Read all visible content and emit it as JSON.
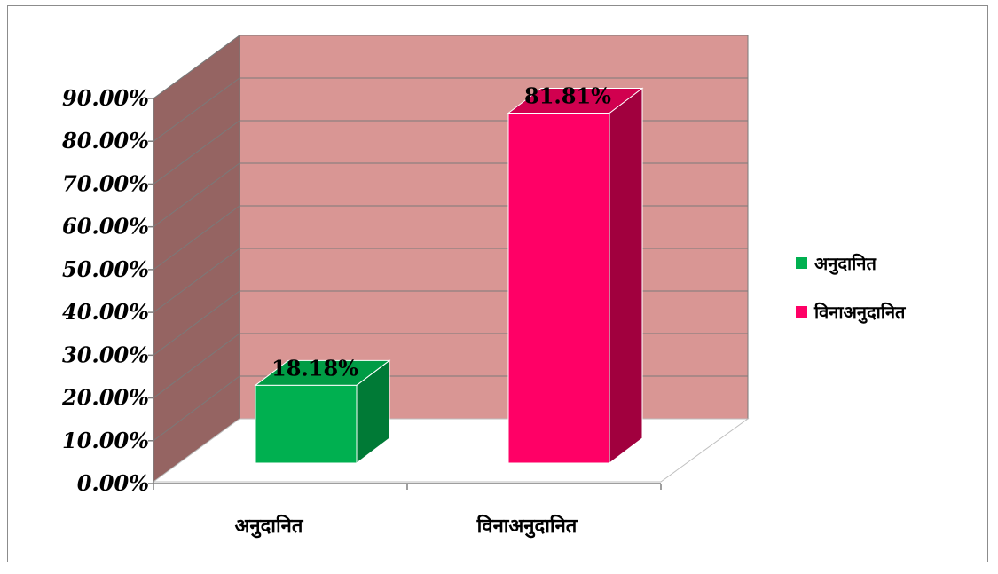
{
  "chart_data": {
    "type": "bar",
    "title": "",
    "xlabel": "",
    "ylabel": "",
    "categories": [
      "अनुदानित",
      "विनाअनुदानित"
    ],
    "values": [
      18.18,
      81.81
    ],
    "value_labels": [
      "18.18%",
      "81.81%"
    ],
    "ylim": [
      0,
      90
    ],
    "yticks": [
      "0.00%",
      "10.00%",
      "20.00%",
      "30.00%",
      "40.00%",
      "50.00%",
      "60.00%",
      "70.00%",
      "80.00%",
      "90.00%"
    ],
    "grid": true,
    "three_d": true,
    "legend": {
      "position": "right",
      "entries": [
        {
          "label": "अनुदानित",
          "color": "#00b050"
        },
        {
          "label": "विनाअनुदानित",
          "color": "#ff0066"
        }
      ]
    },
    "colors": {
      "back_wall": "#d99694",
      "side_wall": "#956462",
      "bar_1_front": "#00b050",
      "bar_1_top": "#009c45",
      "bar_1_side": "#007a36",
      "bar_2_front": "#ff0066",
      "bar_2_top": "#d1004f",
      "bar_2_side": "#a1003e"
    }
  }
}
